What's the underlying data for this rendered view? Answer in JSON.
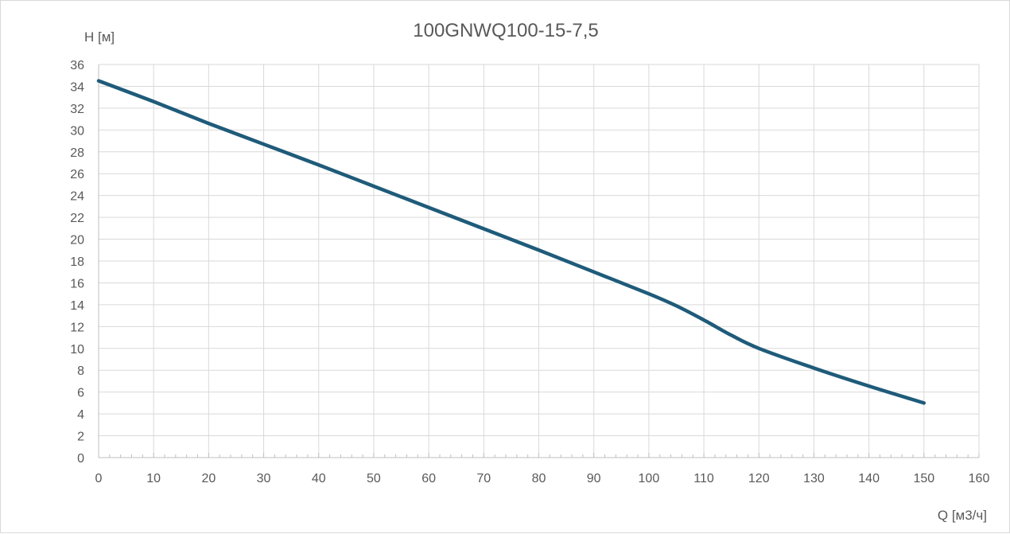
{
  "chart_data": {
    "type": "line",
    "title": "100GNWQ100-15-7,5",
    "xlabel": "Q [м3/ч]",
    "ylabel": "H [м]",
    "xlim": [
      0,
      160
    ],
    "ylim": [
      0,
      36
    ],
    "x_ticks": [
      0,
      10,
      20,
      30,
      40,
      50,
      60,
      70,
      80,
      90,
      100,
      110,
      120,
      130,
      140,
      150,
      160
    ],
    "y_ticks": [
      0,
      2,
      4,
      6,
      8,
      10,
      12,
      14,
      16,
      18,
      20,
      22,
      24,
      26,
      28,
      30,
      32,
      34,
      36
    ],
    "grid": true,
    "legend": "none",
    "series": [
      {
        "color": "#1f5b7a",
        "x": [
          0,
          10,
          20,
          30,
          40,
          50,
          60,
          70,
          80,
          90,
          100,
          105,
          110,
          115,
          120,
          130,
          140,
          150
        ],
        "y": [
          34.5,
          32.6,
          30.6,
          28.7,
          26.8,
          24.85,
          22.9,
          20.95,
          19.0,
          17.0,
          15.0,
          13.9,
          12.6,
          11.2,
          10.0,
          8.2,
          6.55,
          5.0
        ]
      }
    ]
  }
}
